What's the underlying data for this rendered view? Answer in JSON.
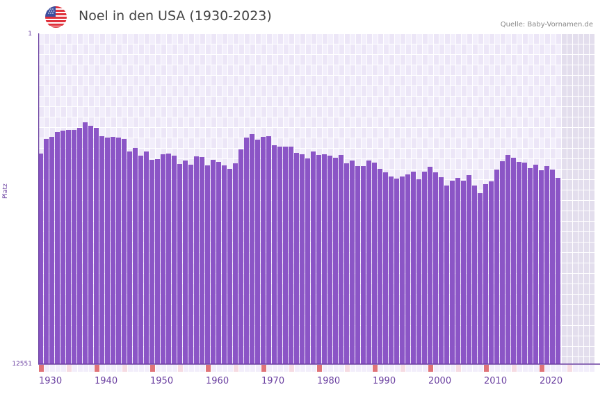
{
  "header": {
    "title": "Noel in den USA (1930-2023)",
    "source": "Quelle: Baby-Vornamen.de",
    "flag_icon": "us-flag-icon"
  },
  "axes": {
    "y_top_label": "1",
    "y_bottom_label": "12551",
    "y_title": "Platz",
    "x_ticks": [
      "1930",
      "1940",
      "1950",
      "1960",
      "1970",
      "1980",
      "1990",
      "2000",
      "2010",
      "2020"
    ]
  },
  "colors": {
    "bar": "#8b55c6",
    "grid_bg_a": "#f2eefb",
    "grid_bg_b": "#ece6f7",
    "future_bg": "#e3deed",
    "decade_marker": "#e07378",
    "half_decade_marker": "#f6dbe2",
    "axis": "#6a3fa0"
  },
  "chart_data": {
    "type": "bar",
    "title": "Noel in den USA (1930-2023)",
    "xlabel": "",
    "ylabel": "Platz",
    "ylim": [
      12551,
      1
    ],
    "y_inverted": true,
    "x_range": [
      1930,
      2029
    ],
    "grid": true,
    "legend": null,
    "categories": [
      1930,
      1931,
      1932,
      1933,
      1934,
      1935,
      1936,
      1937,
      1938,
      1939,
      1940,
      1941,
      1942,
      1943,
      1944,
      1945,
      1946,
      1947,
      1948,
      1949,
      1950,
      1951,
      1952,
      1953,
      1954,
      1955,
      1956,
      1957,
      1958,
      1959,
      1960,
      1961,
      1962,
      1963,
      1964,
      1965,
      1966,
      1967,
      1968,
      1969,
      1970,
      1971,
      1972,
      1973,
      1974,
      1975,
      1976,
      1977,
      1978,
      1979,
      1980,
      1981,
      1982,
      1983,
      1984,
      1985,
      1986,
      1987,
      1988,
      1989,
      1990,
      1991,
      1992,
      1993,
      1994,
      1995,
      1996,
      1997,
      1998,
      1999,
      2000,
      2001,
      2002,
      2003,
      2004,
      2005,
      2006,
      2007,
      2008,
      2009,
      2010,
      2011,
      2012,
      2013,
      2014,
      2015,
      2016,
      2017,
      2018,
      2019,
      2020,
      2021,
      2022,
      2023
    ],
    "values": [
      4562,
      4009,
      3930,
      3745,
      3692,
      3666,
      3666,
      3587,
      3376,
      3508,
      3587,
      3903,
      3956,
      3930,
      3956,
      4009,
      4483,
      4351,
      4641,
      4483,
      4800,
      4773,
      4589,
      4562,
      4641,
      4958,
      4826,
      4984,
      4668,
      4694,
      5011,
      4800,
      4879,
      5011,
      5142,
      4932,
      4404,
      3956,
      3824,
      4035,
      3930,
      3903,
      4246,
      4299,
      4299,
      4299,
      4536,
      4589,
      4747,
      4483,
      4615,
      4589,
      4641,
      4721,
      4615,
      4932,
      4826,
      5037,
      5037,
      4826,
      4905,
      5142,
      5274,
      5432,
      5512,
      5432,
      5353,
      5248,
      5538,
      5248,
      5063,
      5274,
      5459,
      5775,
      5591,
      5485,
      5591,
      5380,
      5775,
      6065,
      5722,
      5617,
      5169,
      4853,
      4615,
      4721,
      4879,
      4905,
      5116,
      4984,
      5195,
      5037,
      5169,
      5485
    ]
  }
}
